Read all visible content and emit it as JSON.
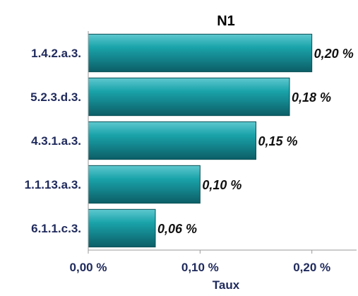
{
  "chart_data": {
    "type": "bar",
    "orientation": "horizontal",
    "title": "N1",
    "xlabel": "Taux",
    "ylabel": "",
    "categories": [
      "1.4.2.a.3.",
      "5.2.3.d.3.",
      "4.3.1.a.3.",
      "1.1.13.a.3.",
      "6.1.1.c.3."
    ],
    "values": [
      0.2,
      0.18,
      0.15,
      0.1,
      0.06
    ],
    "value_labels": [
      "0,20 %",
      "0,18 %",
      "0,15 %",
      "0,10 %",
      "0,06 %"
    ],
    "xlim": [
      0,
      0.24
    ],
    "x_ticks": [
      0,
      0.1,
      0.2
    ],
    "x_tick_labels": [
      "0,00 %",
      "0,10 %",
      "0,20 %"
    ],
    "grid": false,
    "legend": "none",
    "colors": {
      "bar_top": "#5fc9cf",
      "bar_mid": "#1aa3aa",
      "bar_bottom": "#0c5e66",
      "bar_edge": "#0a4f55",
      "text": "#1f2a5c"
    }
  }
}
